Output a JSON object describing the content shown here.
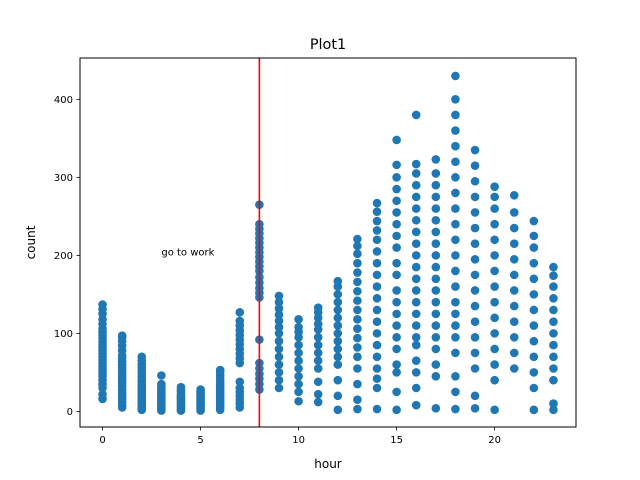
{
  "chart_data": {
    "type": "scatter",
    "title": "Plot1",
    "xlabel": "hour",
    "ylabel": "count",
    "xlim": [
      -1.15,
      24.15
    ],
    "ylim": [
      -20,
      453
    ],
    "xticks": [
      0,
      5,
      10,
      15,
      20
    ],
    "yticks": [
      0,
      100,
      200,
      300,
      400
    ],
    "grid": false,
    "marker_color": "#1f77b4",
    "vline": {
      "x": 8,
      "color": "#ff0000"
    },
    "annotation": {
      "text": "go to work",
      "x": 3,
      "y": 200
    },
    "points_by_hour": {
      "0": [
        16,
        22,
        30,
        35,
        40,
        45,
        48,
        52,
        55,
        58,
        62,
        66,
        70,
        74,
        78,
        82,
        86,
        90,
        94,
        98,
        102,
        106,
        112,
        118,
        125,
        131,
        137
      ],
      "1": [
        5,
        8,
        12,
        16,
        20,
        24,
        28,
        32,
        36,
        40,
        44,
        48,
        52,
        56,
        60,
        64,
        68,
        72,
        78,
        84,
        90,
        95,
        97
      ],
      "2": [
        2,
        4,
        6,
        8,
        10,
        13,
        16,
        19,
        22,
        25,
        28,
        31,
        34,
        37,
        40,
        44,
        48,
        52,
        56,
        60,
        65,
        70
      ],
      "3": [
        1,
        3,
        5,
        7,
        9,
        11,
        13,
        15,
        17,
        19,
        21,
        23,
        25,
        28,
        31,
        35,
        46
      ],
      "4": [
        1,
        2,
        4,
        6,
        8,
        10,
        12,
        14,
        16,
        18,
        20,
        22,
        25,
        28,
        31
      ],
      "5": [
        1,
        3,
        5,
        7,
        9,
        11,
        13,
        15,
        17,
        19,
        21,
        23,
        25,
        28
      ],
      "6": [
        2,
        5,
        8,
        11,
        14,
        17,
        20,
        23,
        26,
        29,
        32,
        35,
        38,
        42,
        46,
        50,
        53
      ],
      "7": [
        5,
        10,
        15,
        20,
        25,
        30,
        38,
        62,
        68,
        74,
        80,
        86,
        92,
        98,
        104,
        110,
        116,
        127
      ],
      "8": [
        28,
        35,
        42,
        48,
        55,
        62,
        92,
        146,
        152,
        158,
        165,
        172,
        180,
        186,
        192,
        198,
        204,
        210,
        216,
        222,
        228,
        234,
        240,
        265
      ],
      "9": [
        30,
        40,
        50,
        60,
        70,
        80,
        90,
        100,
        108,
        116,
        124,
        132,
        140,
        148
      ],
      "10": [
        13,
        25,
        35,
        45,
        55,
        65,
        75,
        85,
        95,
        102,
        108,
        118
      ],
      "11": [
        12,
        22,
        38,
        55,
        65,
        75,
        85,
        95,
        105,
        112,
        120,
        127,
        133
      ],
      "12": [
        2,
        20,
        40,
        60,
        70,
        80,
        90,
        100,
        110,
        120,
        130,
        140,
        150,
        160,
        167
      ],
      "13": [
        3,
        15,
        35,
        55,
        70,
        82,
        94,
        106,
        118,
        130,
        142,
        154,
        166,
        178,
        190,
        202,
        212,
        221
      ],
      "14": [
        3,
        30,
        42,
        55,
        70,
        85,
        100,
        115,
        130,
        145,
        160,
        175,
        190,
        205,
        220,
        232,
        244,
        256,
        267
      ],
      "15": [
        2,
        25,
        50,
        60,
        80,
        95,
        110,
        125,
        140,
        155,
        175,
        190,
        210,
        225,
        240,
        255,
        270,
        285,
        300,
        316,
        348
      ],
      "16": [
        8,
        30,
        50,
        65,
        85,
        95,
        110,
        125,
        140,
        155,
        170,
        185,
        200,
        215,
        230,
        245,
        260,
        275,
        290,
        305,
        317,
        380
      ],
      "17": [
        4,
        45,
        60,
        80,
        95,
        110,
        125,
        140,
        155,
        170,
        185,
        200,
        215,
        230,
        245,
        260,
        275,
        290,
        305,
        323
      ],
      "18": [
        3,
        25,
        45,
        75,
        95,
        110,
        125,
        140,
        160,
        180,
        200,
        220,
        240,
        260,
        280,
        300,
        320,
        340,
        360,
        380,
        400,
        430
      ],
      "19": [
        4,
        20,
        55,
        75,
        95,
        115,
        135,
        155,
        175,
        195,
        215,
        235,
        255,
        275,
        295,
        315,
        335
      ],
      "20": [
        2,
        40,
        60,
        80,
        100,
        120,
        140,
        160,
        180,
        200,
        220,
        240,
        260,
        275,
        288
      ],
      "21": [
        55,
        75,
        95,
        115,
        135,
        155,
        175,
        195,
        215,
        235,
        255,
        277
      ],
      "22": [
        2,
        30,
        50,
        70,
        90,
        110,
        130,
        150,
        170,
        190,
        210,
        225,
        244
      ],
      "23": [
        2,
        10,
        40,
        55,
        70,
        85,
        100,
        115,
        130,
        145,
        160,
        174,
        185
      ]
    }
  }
}
